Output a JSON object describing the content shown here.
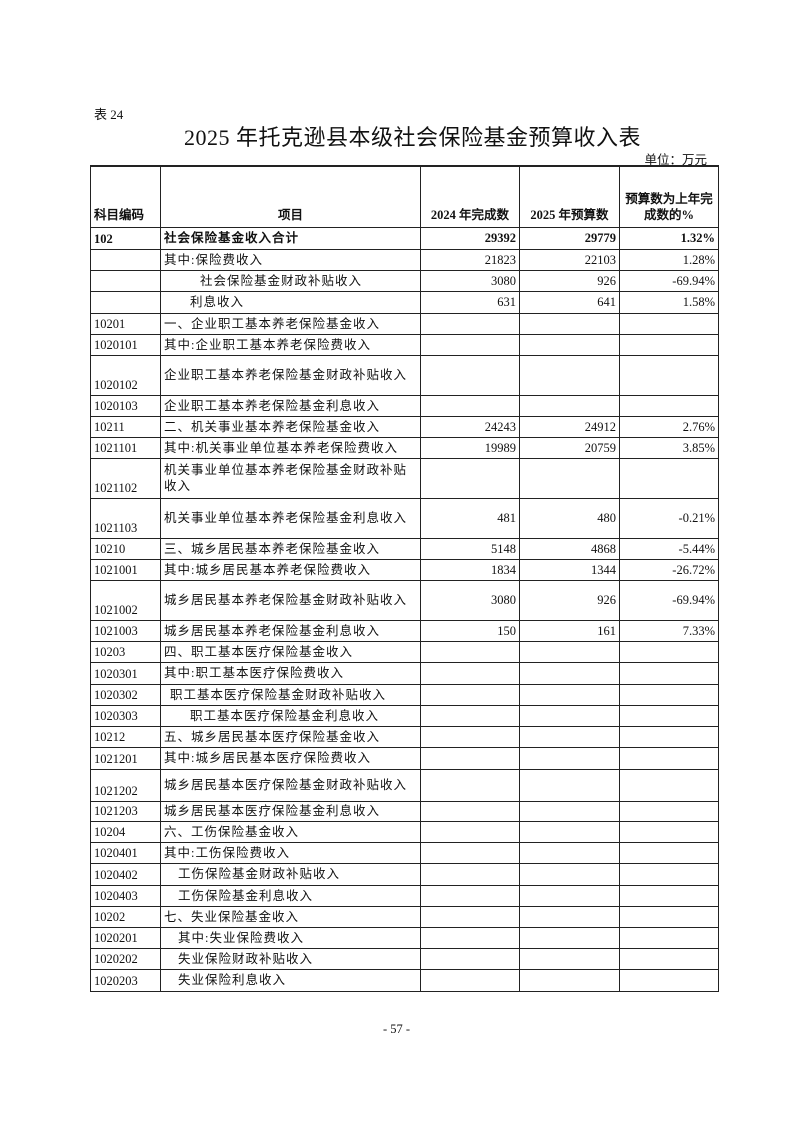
{
  "table_no": "表 24",
  "title": "2025 年托克逊县本级社会保险基金预算收入表",
  "unit": "单位：万元",
  "headers": {
    "code": "科目编码",
    "item": "项目",
    "y2024": "2024 年完成数",
    "y2025": "2025 年预算数",
    "pct": "预算数为上年完成数的%"
  },
  "rows": [
    {
      "code": "102",
      "item": "社会保险基金收入合计",
      "y2024": "29392",
      "y2025": "29779",
      "pct": "1.32%"
    },
    {
      "code": "",
      "item": "其中:保险费收入",
      "y2024": "21823",
      "y2025": "22103",
      "pct": "1.28%"
    },
    {
      "code": "",
      "item": "社会保险基金财政补贴收入",
      "y2024": "3080",
      "y2025": "926",
      "pct": "-69.94%"
    },
    {
      "code": "",
      "item": "利息收入",
      "y2024": "631",
      "y2025": "641",
      "pct": "1.58%"
    },
    {
      "code": "10201",
      "item": "一、企业职工基本养老保险基金收入",
      "y2024": "",
      "y2025": "",
      "pct": ""
    },
    {
      "code": "1020101",
      "item": "其中:企业职工基本养老保险费收入",
      "y2024": "",
      "y2025": "",
      "pct": ""
    },
    {
      "code": "1020102",
      "item": "企业职工基本养老保险基金财政补贴收入",
      "y2024": "",
      "y2025": "",
      "pct": ""
    },
    {
      "code": "1020103",
      "item": "企业职工基本养老保险基金利息收入",
      "y2024": "",
      "y2025": "",
      "pct": ""
    },
    {
      "code": "10211",
      "item": "二、机关事业基本养老保险基金收入",
      "y2024": "24243",
      "y2025": "24912",
      "pct": "2.76%"
    },
    {
      "code": "1021101",
      "item": "其中:机关事业单位基本养老保险费收入",
      "y2024": "19989",
      "y2025": "20759",
      "pct": "3.85%"
    },
    {
      "code": "1021102",
      "item": "机关事业单位基本养老保险基金财政补贴收入",
      "y2024": "",
      "y2025": "",
      "pct": ""
    },
    {
      "code": "1021103",
      "item": "机关事业单位基本养老保险基金利息收入",
      "y2024": "481",
      "y2025": "480",
      "pct": "-0.21%"
    },
    {
      "code": "10210",
      "item": "三、城乡居民基本养老保险基金收入",
      "y2024": "5148",
      "y2025": "4868",
      "pct": "-5.44%"
    },
    {
      "code": "1021001",
      "item": "其中:城乡居民基本养老保险费收入",
      "y2024": "1834",
      "y2025": "1344",
      "pct": "-26.72%"
    },
    {
      "code": "1021002",
      "item": "城乡居民基本养老保险基金财政补贴收入",
      "y2024": "3080",
      "y2025": "926",
      "pct": "-69.94%"
    },
    {
      "code": "1021003",
      "item": "城乡居民基本养老保险基金利息收入",
      "y2024": "150",
      "y2025": "161",
      "pct": "7.33%"
    },
    {
      "code": "10203",
      "item": "四、职工基本医疗保险基金收入",
      "y2024": "",
      "y2025": "",
      "pct": ""
    },
    {
      "code": "1020301",
      "item": "其中:职工基本医疗保险费收入",
      "y2024": "",
      "y2025": "",
      "pct": ""
    },
    {
      "code": "1020302",
      "item": "职工基本医疗保险基金财政补贴收入",
      "y2024": "",
      "y2025": "",
      "pct": ""
    },
    {
      "code": "1020303",
      "item": "职工基本医疗保险基金利息收入",
      "y2024": "",
      "y2025": "",
      "pct": ""
    },
    {
      "code": "10212",
      "item": "五、城乡居民基本医疗保险基金收入",
      "y2024": "",
      "y2025": "",
      "pct": ""
    },
    {
      "code": "1021201",
      "item": "其中:城乡居民基本医疗保险费收入",
      "y2024": "",
      "y2025": "",
      "pct": ""
    },
    {
      "code": "1021202",
      "item": "城乡居民基本医疗保险基金财政补贴收入",
      "y2024": "",
      "y2025": "",
      "pct": ""
    },
    {
      "code": "1021203",
      "item": "城乡居民基本医疗保险基金利息收入",
      "y2024": "",
      "y2025": "",
      "pct": ""
    },
    {
      "code": "10204",
      "item": "六、工伤保险基金收入",
      "y2024": "",
      "y2025": "",
      "pct": ""
    },
    {
      "code": "1020401",
      "item": "其中:工伤保险费收入",
      "y2024": "",
      "y2025": "",
      "pct": ""
    },
    {
      "code": "1020402",
      "item": "工伤保险基金财政补贴收入",
      "y2024": "",
      "y2025": "",
      "pct": ""
    },
    {
      "code": "1020403",
      "item": "工伤保险基金利息收入",
      "y2024": "",
      "y2025": "",
      "pct": ""
    },
    {
      "code": "10202",
      "item": "七、失业保险基金收入",
      "y2024": "",
      "y2025": "",
      "pct": ""
    },
    {
      "code": "1020201",
      "item": "其中:失业保险费收入",
      "y2024": "",
      "y2025": "",
      "pct": ""
    },
    {
      "code": "1020202",
      "item": "失业保险财政补贴收入",
      "y2024": "",
      "y2025": "",
      "pct": ""
    },
    {
      "code": "1020203",
      "item": "失业保险利息收入",
      "y2024": "",
      "y2025": "",
      "pct": ""
    }
  ],
  "page_number": "- 57 -"
}
